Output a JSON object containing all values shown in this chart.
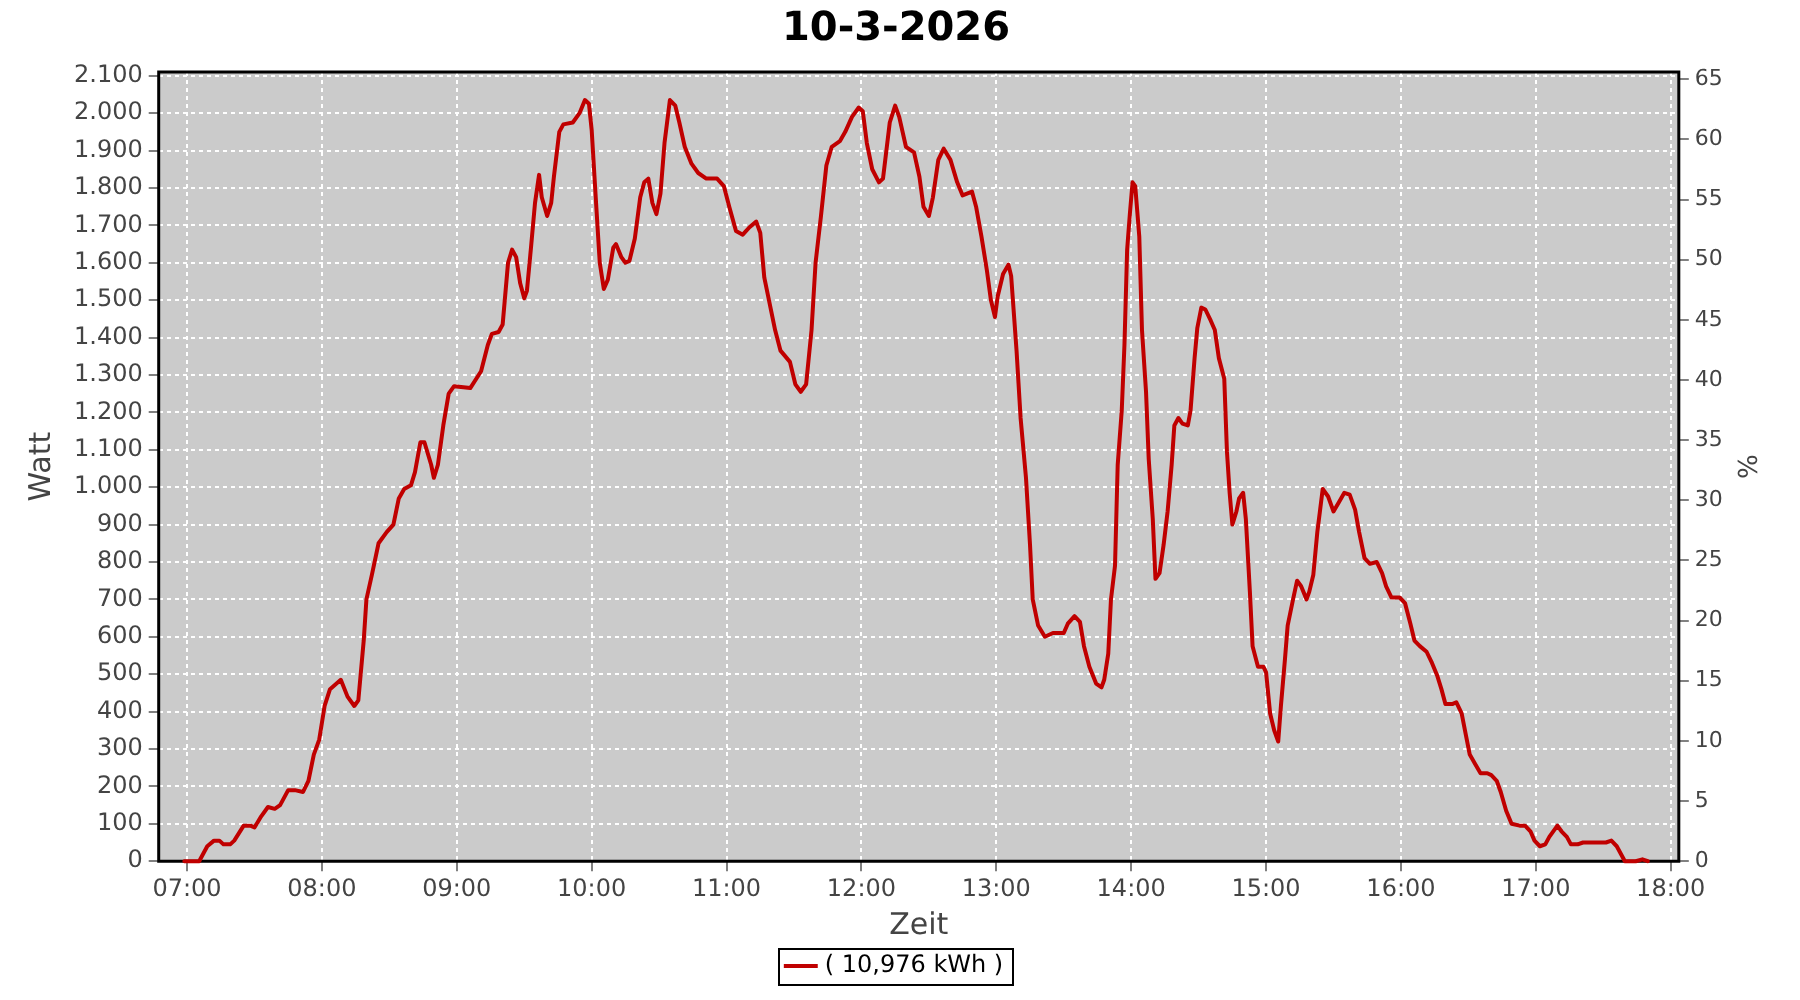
{
  "chart_data": {
    "type": "line",
    "title": "10-3-2026",
    "xlabel": "Zeit",
    "ylabel": "Watt",
    "y2label": "%",
    "x": [
      6.98,
      7.09,
      7.15,
      7.2,
      7.24,
      7.27,
      7.32,
      7.35,
      7.42,
      7.47,
      7.5,
      7.55,
      7.6,
      7.65,
      7.69,
      7.75,
      7.8,
      7.86,
      7.9,
      7.94,
      7.98,
      8.02,
      8.06,
      8.14,
      8.19,
      8.24,
      8.27,
      8.31,
      8.33,
      8.37,
      8.42,
      8.48,
      8.53,
      8.57,
      8.61,
      8.66,
      8.69,
      8.73,
      8.76,
      8.81,
      8.83,
      8.86,
      8.9,
      8.94,
      8.98,
      9.1,
      9.18,
      9.23,
      9.26,
      9.31,
      9.34,
      9.38,
      9.41,
      9.44,
      9.47,
      9.5,
      9.52,
      9.55,
      9.58,
      9.61,
      9.63,
      9.67,
      9.7,
      9.72,
      9.76,
      9.79,
      9.86,
      9.91,
      9.95,
      9.98,
      10.0,
      10.03,
      10.06,
      10.09,
      10.12,
      10.16,
      10.18,
      10.22,
      10.25,
      10.28,
      10.32,
      10.36,
      10.39,
      10.42,
      10.45,
      10.48,
      10.51,
      10.54,
      10.58,
      10.62,
      10.65,
      10.69,
      10.74,
      10.79,
      10.85,
      10.93,
      10.98,
      11.02,
      11.07,
      11.12,
      11.17,
      11.22,
      11.25,
      11.28,
      11.32,
      11.36,
      11.4,
      11.47,
      11.51,
      11.55,
      11.59,
      11.63,
      11.66,
      11.7,
      11.74,
      11.78,
      11.84,
      11.88,
      11.93,
      11.98,
      12.01,
      12.04,
      12.08,
      12.13,
      12.16,
      12.21,
      12.25,
      12.28,
      12.33,
      12.39,
      12.43,
      12.46,
      12.5,
      12.53,
      12.57,
      12.61,
      12.66,
      12.71,
      12.75,
      12.82,
      12.85,
      12.89,
      12.93,
      12.96,
      12.99,
      13.01,
      13.05,
      13.09,
      13.11,
      13.15,
      13.18,
      13.22,
      13.25,
      13.27,
      13.31,
      13.36,
      13.42,
      13.5,
      13.53,
      13.58,
      13.62,
      13.65,
      13.69,
      13.74,
      13.78,
      13.8,
      13.83,
      13.85,
      13.88,
      13.9,
      13.93,
      13.95,
      13.97,
      13.99,
      14.01,
      14.03,
      14.06,
      14.08,
      14.11,
      14.13,
      14.16,
      14.18,
      14.21,
      14.24,
      14.27,
      14.3,
      14.32,
      14.35,
      14.38,
      14.42,
      14.44,
      14.47,
      14.49,
      14.52,
      14.55,
      14.59,
      14.62,
      14.65,
      14.69,
      14.71,
      14.73,
      14.75,
      14.78,
      14.8,
      14.83,
      14.85,
      14.88,
      14.9,
      14.94,
      14.98,
      15.0,
      15.03,
      15.06,
      15.09,
      15.11,
      15.14,
      15.16,
      15.2,
      15.23,
      15.26,
      15.3,
      15.32,
      15.35,
      15.38,
      15.42,
      15.46,
      15.5,
      15.54,
      15.58,
      15.62,
      15.66,
      15.69,
      15.73,
      15.77,
      15.82,
      15.86,
      15.89,
      15.93,
      15.99,
      16.03,
      16.07,
      16.1,
      16.14,
      16.19,
      16.23,
      16.27,
      16.3,
      16.33,
      16.38,
      16.41,
      16.45,
      16.48,
      16.51,
      16.55,
      16.59,
      16.64,
      16.67,
      16.71,
      16.74,
      16.78,
      16.82,
      16.88,
      16.92,
      16.96,
      16.99,
      17.03,
      17.07,
      17.1,
      17.14,
      17.16,
      17.19,
      17.23,
      17.26,
      17.31,
      17.35,
      17.52,
      17.56,
      17.6,
      17.63,
      17.66,
      17.74,
      17.79,
      17.83
    ],
    "series": [
      {
        "name": "( 10,976 kWh )",
        "color": "#c00000",
        "values": [
          0,
          0,
          40,
          55,
          55,
          45,
          45,
          55,
          95,
          95,
          90,
          120,
          145,
          140,
          150,
          190,
          190,
          185,
          215,
          285,
          325,
          415,
          460,
          485,
          440,
          415,
          430,
          590,
          700,
          765,
          850,
          880,
          900,
          970,
          995,
          1005,
          1040,
          1120,
          1120,
          1060,
          1025,
          1060,
          1165,
          1250,
          1270,
          1265,
          1310,
          1380,
          1410,
          1415,
          1435,
          1600,
          1635,
          1615,
          1545,
          1505,
          1525,
          1640,
          1760,
          1835,
          1775,
          1725,
          1760,
          1830,
          1950,
          1970,
          1975,
          2000,
          2035,
          2025,
          1955,
          1775,
          1600,
          1530,
          1555,
          1640,
          1650,
          1615,
          1600,
          1605,
          1665,
          1775,
          1815,
          1825,
          1760,
          1730,
          1785,
          1920,
          2035,
          2020,
          1975,
          1910,
          1865,
          1840,
          1825,
          1825,
          1805,
          1750,
          1685,
          1675,
          1695,
          1710,
          1680,
          1560,
          1490,
          1420,
          1365,
          1335,
          1275,
          1255,
          1275,
          1420,
          1600,
          1725,
          1860,
          1910,
          1925,
          1950,
          1990,
          2015,
          2005,
          1920,
          1850,
          1815,
          1825,
          1975,
          2020,
          1990,
          1910,
          1895,
          1830,
          1750,
          1725,
          1775,
          1875,
          1905,
          1875,
          1815,
          1780,
          1790,
          1750,
          1670,
          1580,
          1500,
          1455,
          1510,
          1570,
          1595,
          1565,
          1365,
          1185,
          1025,
          845,
          700,
          630,
          600,
          610,
          610,
          635,
          655,
          640,
          575,
          520,
          475,
          465,
          485,
          555,
          700,
          790,
          1060,
          1205,
          1380,
          1635,
          1730,
          1815,
          1805,
          1670,
          1420,
          1255,
          1075,
          915,
          755,
          770,
          845,
          935,
          1060,
          1165,
          1185,
          1170,
          1165,
          1205,
          1345,
          1425,
          1480,
          1475,
          1445,
          1420,
          1345,
          1290,
          1095,
          985,
          900,
          935,
          970,
          985,
          915,
          720,
          575,
          520,
          520,
          505,
          395,
          350,
          320,
          415,
          540,
          630,
          700,
          750,
          735,
          700,
          720,
          765,
          880,
          995,
          975,
          935,
          960,
          985,
          980,
          940,
          880,
          810,
          795,
          800,
          770,
          735,
          705,
          705,
          690,
          635,
          590,
          575,
          560,
          530,
          495,
          460,
          420,
          420,
          425,
          395,
          340,
          285,
          260,
          235,
          235,
          230,
          215,
          185,
          135,
          100,
          95,
          95,
          80,
          55,
          40,
          45,
          65,
          85,
          95,
          80,
          65,
          45,
          45,
          50,
          50,
          55,
          40,
          20,
          0,
          0,
          5,
          0
        ]
      }
    ],
    "xlim": [
      6.79,
      18.06
    ],
    "xticks": [
      {
        "value": 7,
        "label": "07:00"
      },
      {
        "value": 8,
        "label": "08:00"
      },
      {
        "value": 9,
        "label": "09:00"
      },
      {
        "value": 10,
        "label": "10:00"
      },
      {
        "value": 11,
        "label": "11:00"
      },
      {
        "value": 12,
        "label": "12:00"
      },
      {
        "value": 13,
        "label": "13:00"
      },
      {
        "value": 14,
        "label": "14:00"
      },
      {
        "value": 15,
        "label": "15:00"
      },
      {
        "value": 16,
        "label": "16:00"
      },
      {
        "value": 17,
        "label": "17:00"
      },
      {
        "value": 18,
        "label": "18:00"
      }
    ],
    "ylim": [
      0,
      2110
    ],
    "yticks": [
      0,
      100,
      200,
      300,
      400,
      500,
      600,
      700,
      800,
      900,
      {
        "value": 1000,
        "label": "1.000"
      },
      {
        "value": 1100,
        "label": "1.100"
      },
      {
        "value": 1200,
        "label": "1.200"
      },
      {
        "value": 1300,
        "label": "1.300"
      },
      {
        "value": 1400,
        "label": "1.400"
      },
      {
        "value": 1500,
        "label": "1.500"
      },
      {
        "value": 1600,
        "label": "1.600"
      },
      {
        "value": 1700,
        "label": "1.700"
      },
      {
        "value": 1800,
        "label": "1.800"
      },
      {
        "value": 1900,
        "label": "1.900"
      },
      {
        "value": 2000,
        "label": "2.000"
      },
      {
        "value": 2100,
        "label": "2.100"
      }
    ],
    "y2lim": [
      0,
      65.6
    ],
    "y2ticks": [
      0,
      5,
      10,
      15,
      20,
      25,
      30,
      35,
      40,
      45,
      50,
      55,
      60,
      65
    ],
    "grid": true,
    "legend": "bottom"
  }
}
